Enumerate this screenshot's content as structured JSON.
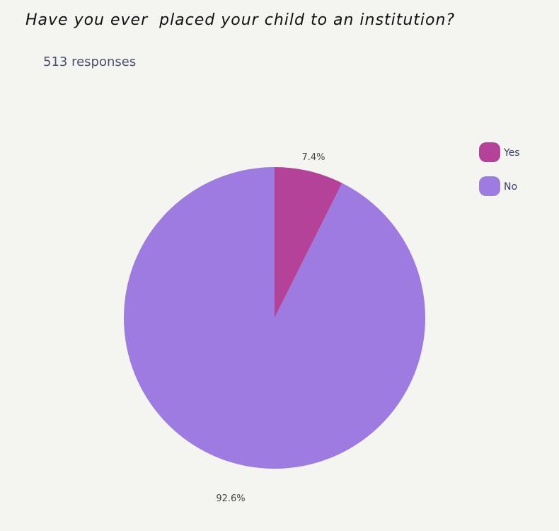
{
  "header": {
    "title": "Have you ever  placed your child to an institution?",
    "responses": "513 responses"
  },
  "chart_data": {
    "type": "pie",
    "title": "Have you ever  placed your child to an institution?",
    "total_responses": 513,
    "categories": [
      "Yes",
      "No"
    ],
    "values": [
      7.4,
      92.6
    ],
    "labels": [
      "7.4%",
      "92.6%"
    ],
    "colors": [
      "#b44299",
      "#9e7be0"
    ],
    "legend_position": "right"
  }
}
